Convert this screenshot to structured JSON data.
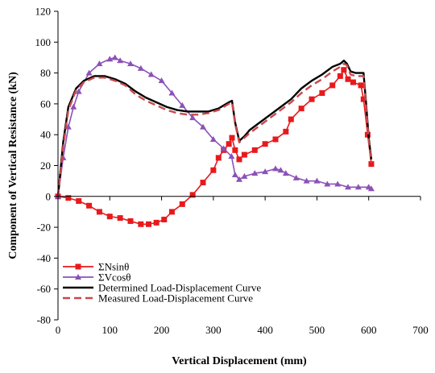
{
  "chart_data": {
    "type": "line",
    "xlabel": "Vertical Displacement (mm)",
    "ylabel": "Component of Vertical Resistance (kN)",
    "xlim": [
      0,
      700
    ],
    "ylim": [
      -80,
      120
    ],
    "xticks": [
      0,
      100,
      200,
      300,
      400,
      500,
      600,
      700
    ],
    "yticks": [
      -80,
      -60,
      -40,
      -20,
      0,
      20,
      40,
      60,
      80,
      100,
      120
    ],
    "grid": false,
    "legend_position": "bottom-left",
    "series": [
      {
        "name": "ΣNsinθ",
        "color": "#e8191c",
        "marker": "square",
        "x": [
          0,
          20,
          40,
          60,
          80,
          100,
          120,
          140,
          160,
          175,
          190,
          205,
          220,
          240,
          260,
          280,
          300,
          310,
          320,
          330,
          336,
          342,
          350,
          360,
          380,
          400,
          420,
          440,
          450,
          470,
          490,
          510,
          530,
          545,
          552,
          560,
          570,
          585,
          590,
          598,
          605
        ],
        "y": [
          0,
          -1,
          -3,
          -6,
          -10,
          -13,
          -14,
          -16,
          -18,
          -18,
          -17,
          -15,
          -10,
          -5,
          1,
          9,
          17,
          25,
          30,
          34,
          38,
          30,
          24,
          27,
          30,
          34,
          37,
          42,
          50,
          57,
          63,
          67,
          72,
          78,
          82,
          76,
          74,
          72,
          63,
          40,
          21
        ]
      },
      {
        "name": "ΣVcosθ",
        "color": "#8b51b8",
        "marker": "triangle",
        "x": [
          0,
          10,
          20,
          30,
          40,
          60,
          80,
          100,
          110,
          120,
          140,
          160,
          180,
          200,
          220,
          240,
          260,
          280,
          300,
          320,
          335,
          342,
          350,
          360,
          380,
          400,
          420,
          430,
          440,
          460,
          480,
          500,
          520,
          540,
          560,
          580,
          600,
          605
        ],
        "y": [
          0,
          25,
          45,
          58,
          68,
          80,
          86,
          89,
          90,
          88,
          86,
          83,
          79,
          75,
          67,
          59,
          51,
          45,
          37,
          31,
          26,
          14,
          11,
          13,
          15,
          16,
          18,
          17,
          15,
          12,
          10,
          10,
          8,
          8,
          6,
          6,
          6,
          5
        ]
      },
      {
        "name": "Determined Load-Displacement Curve",
        "color": "#000000",
        "marker": "none",
        "x": [
          0,
          10,
          20,
          35,
          50,
          70,
          90,
          110,
          130,
          150,
          170,
          190,
          210,
          230,
          250,
          270,
          290,
          310,
          320,
          330,
          336,
          342,
          350,
          360,
          370,
          390,
          410,
          430,
          450,
          470,
          490,
          510,
          530,
          545,
          552,
          558,
          565,
          575,
          590,
          595,
          600,
          605
        ],
        "y": [
          0,
          35,
          58,
          70,
          75,
          78,
          78,
          76,
          73,
          68,
          64,
          61,
          58,
          56,
          55,
          55,
          55,
          57,
          59,
          61,
          62,
          48,
          36,
          39,
          43,
          48,
          53,
          58,
          63,
          70,
          75,
          79,
          84,
          86,
          88,
          86,
          81,
          80,
          80,
          60,
          38,
          24
        ]
      },
      {
        "name": "Measured Load-Displacement Curve",
        "color": "#c9494c",
        "marker": "none",
        "dashed": true,
        "x": [
          0,
          10,
          20,
          35,
          50,
          70,
          90,
          110,
          130,
          150,
          170,
          190,
          210,
          230,
          250,
          270,
          290,
          310,
          320,
          330,
          336,
          342,
          350,
          360,
          370,
          390,
          410,
          430,
          450,
          470,
          490,
          510,
          530,
          545,
          552,
          558,
          565,
          575,
          590,
          595,
          600,
          605
        ],
        "y": [
          0,
          32,
          56,
          69,
          74,
          77,
          77,
          75,
          72,
          66,
          62,
          59,
          56,
          54,
          53,
          53,
          54,
          56,
          58,
          60,
          61,
          47,
          35,
          38,
          41,
          46,
          51,
          56,
          61,
          67,
          72,
          76,
          81,
          84,
          86,
          85,
          79,
          78,
          78,
          58,
          36,
          22
        ]
      }
    ]
  }
}
